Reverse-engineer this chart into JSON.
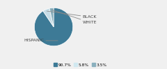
{
  "slices": [
    90.7,
    5.8,
    3.5
  ],
  "labels": [
    "HISPANIC",
    "BLACK",
    "WHITE"
  ],
  "colors": [
    "#3d7a96",
    "#c5dce6",
    "#8ab0be"
  ],
  "legend_colors": [
    "#3d7a96",
    "#d0e8f0",
    "#8ab0be"
  ],
  "legend_labels": [
    "90.7%",
    "5.8%",
    "3.5%"
  ],
  "startangle": 90,
  "bg_color": "#f0f0f0"
}
